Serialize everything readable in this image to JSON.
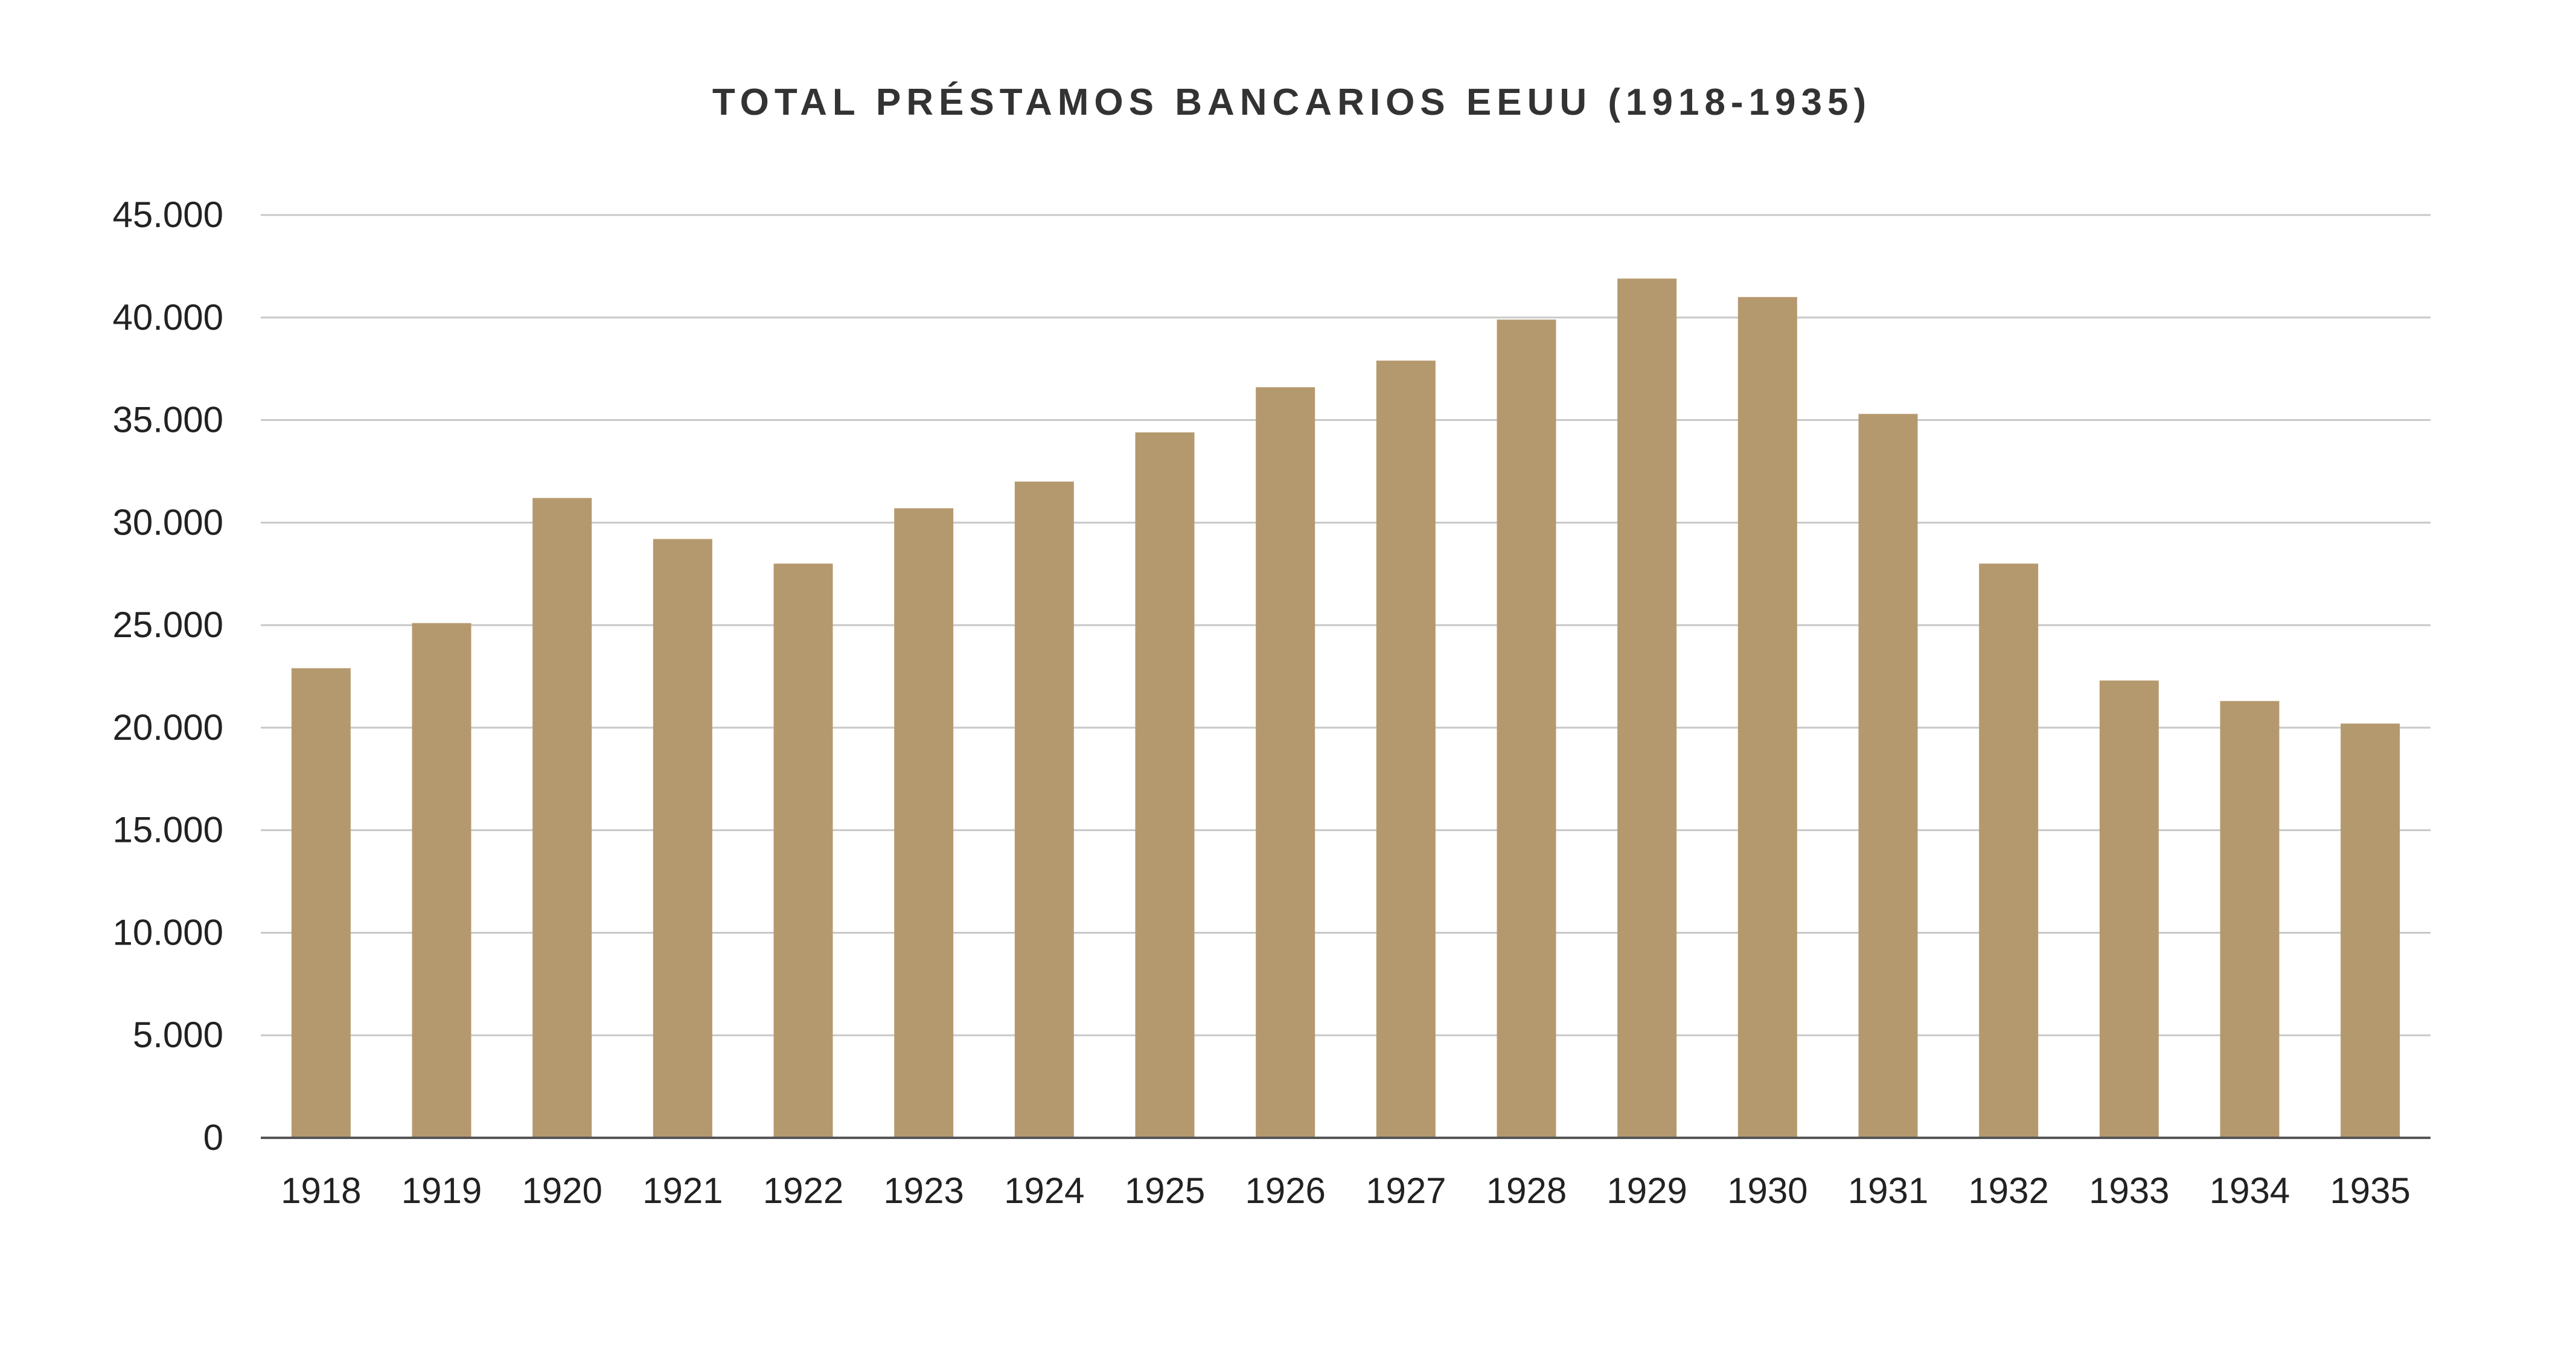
{
  "chart_data": {
    "type": "bar",
    "title": "TOTAL PRÉSTAMOS BANCARIOS EEUU (1918-1935)",
    "xlabel": "",
    "ylabel": "",
    "categories": [
      "1918",
      "1919",
      "1920",
      "1921",
      "1922",
      "1923",
      "1924",
      "1925",
      "1926",
      "1927",
      "1928",
      "1929",
      "1930",
      "1931",
      "1932",
      "1933",
      "1934",
      "1935"
    ],
    "values": [
      22900,
      25100,
      31200,
      29200,
      28000,
      30700,
      32000,
      34400,
      36600,
      37900,
      39900,
      41900,
      41000,
      35300,
      28000,
      22300,
      21300,
      20200
    ],
    "ylim": [
      0,
      45000
    ],
    "yticks": [
      0,
      5000,
      10000,
      15000,
      20000,
      25000,
      30000,
      35000,
      40000,
      45000
    ],
    "ytick_labels": [
      "0",
      "5.000",
      "10.000",
      "15.000",
      "20.000",
      "25.000",
      "30.000",
      "35.000",
      "40.000",
      "45.000"
    ],
    "grid": true,
    "legend": "none",
    "bar_color": "#b5996e"
  }
}
